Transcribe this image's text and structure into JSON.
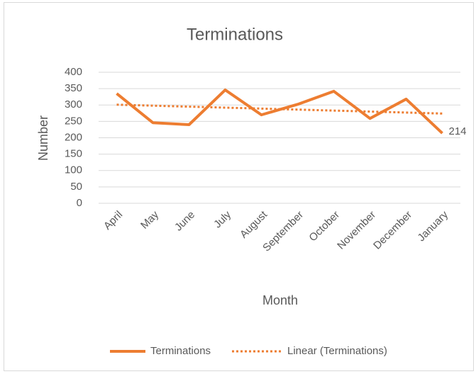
{
  "chart_data": {
    "type": "line",
    "title": "Terminations",
    "x_label": "Month",
    "y_label": "Number",
    "categories": [
      "April",
      "May",
      "June",
      "July",
      "August",
      "September",
      "October",
      "November",
      "December",
      "January"
    ],
    "series": [
      {
        "name": "Terminations",
        "color": "#ed7d31",
        "style": "solid",
        "values": [
          335,
          246,
          240,
          346,
          270,
          302,
          342,
          259,
          318,
          214
        ],
        "value_labels": [
          null,
          null,
          null,
          null,
          null,
          null,
          null,
          null,
          null,
          "214"
        ]
      },
      {
        "name": "Linear (Terminations)",
        "color": "#ed7d31",
        "style": "dotted",
        "values": [
          301,
          298,
          295,
          292,
          289,
          286,
          283,
          280,
          277,
          274
        ]
      }
    ],
    "ylim": [
      0,
      400
    ],
    "yticks": [
      0,
      50,
      100,
      150,
      200,
      250,
      300,
      350,
      400
    ],
    "grid": true,
    "legend": "bottom"
  }
}
